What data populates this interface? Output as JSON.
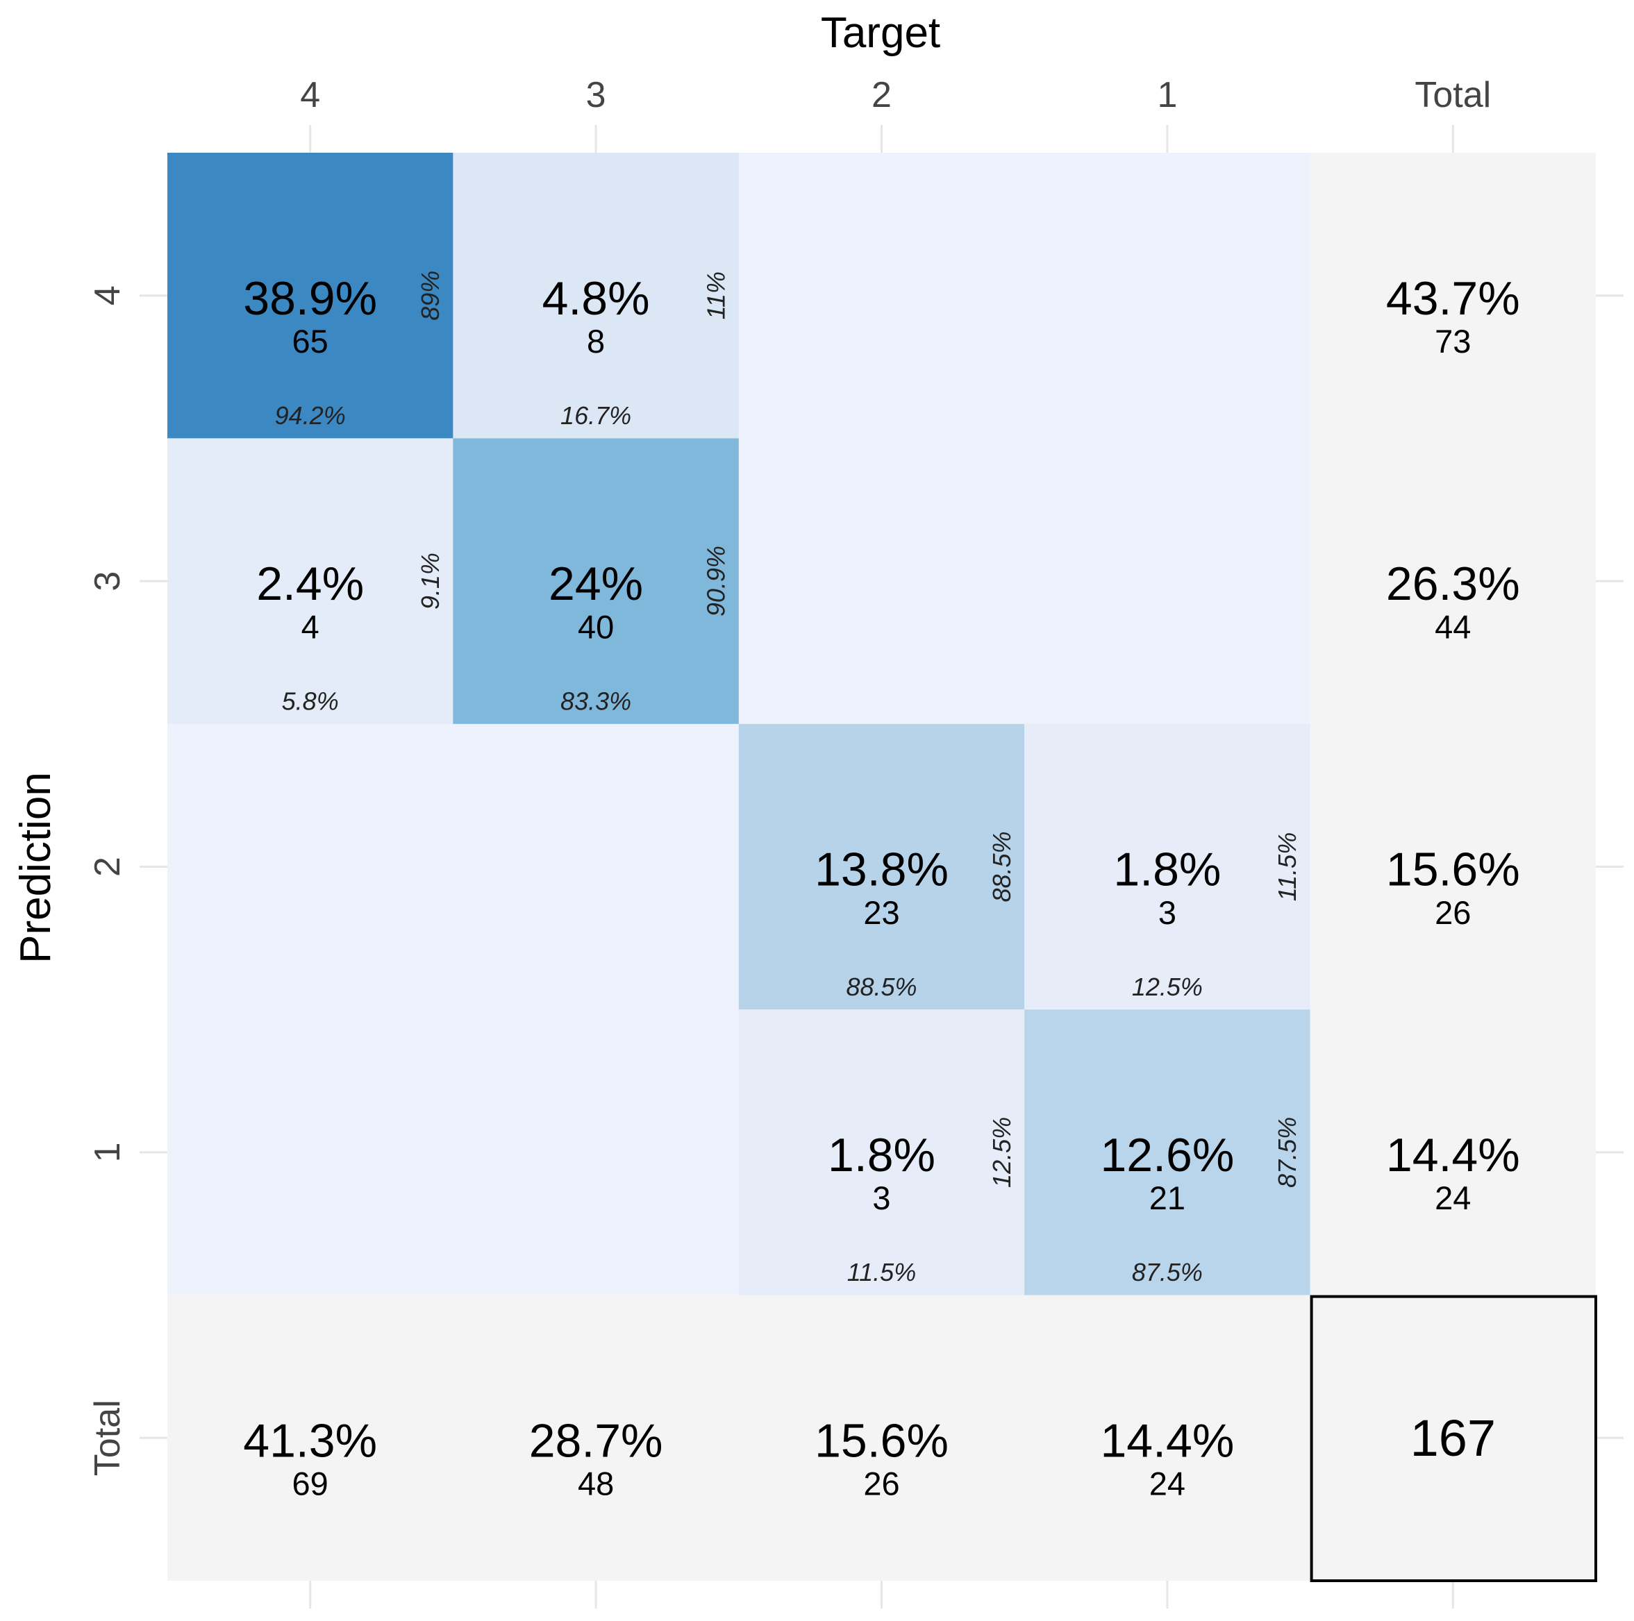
{
  "chart_data": {
    "type": "heatmap",
    "x_title": "Target",
    "y_title": "Prediction",
    "classes": [
      "4",
      "3",
      "2",
      "1"
    ],
    "total_label": "Total",
    "grand_total": "167",
    "colors": {
      "background_empty": "#eef2fc",
      "total_bg": "#f4f4f4",
      "scale": [
        "#e4ecf9",
        "#dce7f6",
        "#b6d3ea",
        "#80b8db",
        "#3b88c2"
      ]
    },
    "cells": [
      {
        "pred": "4",
        "target": "4",
        "count": "65",
        "pct": "38.9%",
        "row_pct": "89%",
        "col_pct": "94.2%",
        "color": "#3b88c2"
      },
      {
        "pred": "4",
        "target": "3",
        "count": "8",
        "pct": "4.8%",
        "row_pct": "11%",
        "col_pct": "16.7%",
        "color": "#dce7f6"
      },
      {
        "pred": "3",
        "target": "4",
        "count": "4",
        "pct": "2.4%",
        "row_pct": "9.1%",
        "col_pct": "5.8%",
        "color": "#e4ecf9"
      },
      {
        "pred": "3",
        "target": "3",
        "count": "40",
        "pct": "24%",
        "row_pct": "90.9%",
        "col_pct": "83.3%",
        "color": "#80b8db"
      },
      {
        "pred": "2",
        "target": "2",
        "count": "23",
        "pct": "13.8%",
        "row_pct": "88.5%",
        "col_pct": "88.5%",
        "color": "#b6d3ea"
      },
      {
        "pred": "2",
        "target": "1",
        "count": "3",
        "pct": "1.8%",
        "row_pct": "11.5%",
        "col_pct": "12.5%",
        "color": "#e6ecf8"
      },
      {
        "pred": "1",
        "target": "2",
        "count": "3",
        "pct": "1.8%",
        "row_pct": "12.5%",
        "col_pct": "11.5%",
        "color": "#e6ecf8"
      },
      {
        "pred": "1",
        "target": "1",
        "count": "21",
        "pct": "12.6%",
        "row_pct": "87.5%",
        "col_pct": "87.5%",
        "color": "#b9d5ec"
      }
    ],
    "row_totals": [
      {
        "pred": "4",
        "pct": "43.7%",
        "count": "73"
      },
      {
        "pred": "3",
        "pct": "26.3%",
        "count": "44"
      },
      {
        "pred": "2",
        "pct": "15.6%",
        "count": "26"
      },
      {
        "pred": "1",
        "pct": "14.4%",
        "count": "24"
      }
    ],
    "col_totals": [
      {
        "target": "4",
        "pct": "41.3%",
        "count": "69"
      },
      {
        "target": "3",
        "pct": "28.7%",
        "count": "48"
      },
      {
        "target": "2",
        "pct": "15.6%",
        "count": "26"
      },
      {
        "target": "1",
        "pct": "14.4%",
        "count": "24"
      }
    ]
  }
}
